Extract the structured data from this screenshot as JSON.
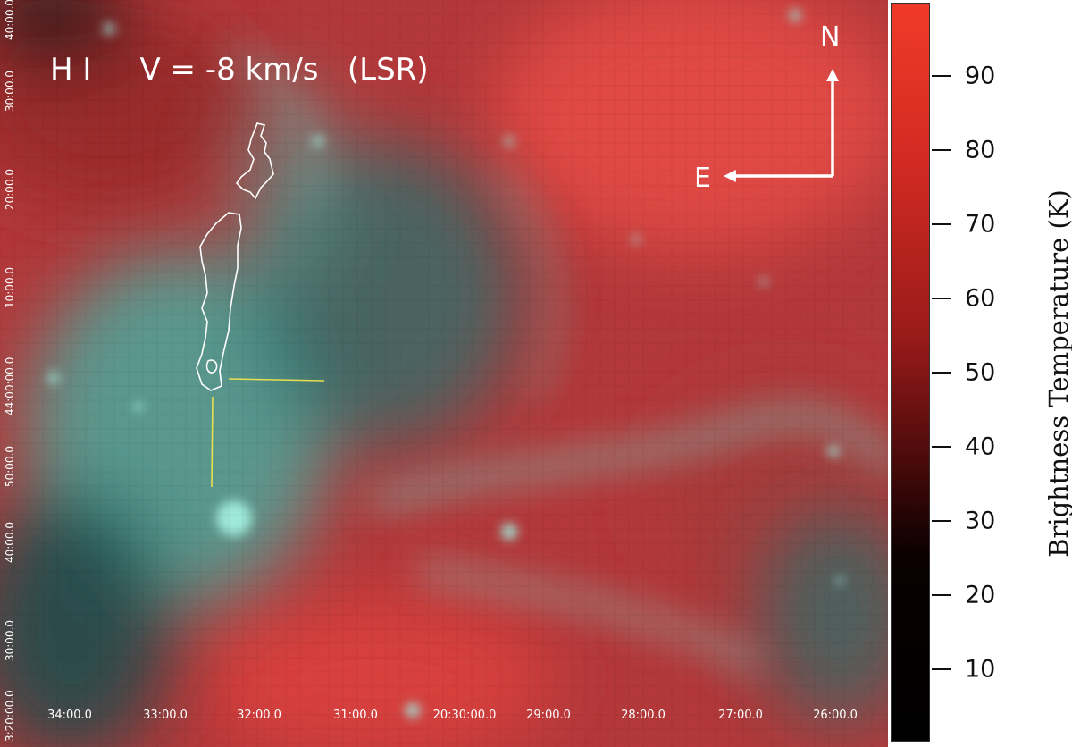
{
  "map": {
    "title": "H I     V = -8 km/s   (LSR)",
    "ra_ticks": [
      "34:00.0",
      "33:00.0",
      "32:00.0",
      "31:00.0",
      "20:30:00.0",
      "29:00.0",
      "28:00.0",
      "27:00.0",
      "26:00.0"
    ],
    "dec_ticks": [
      "40:00.0",
      "30:00.0",
      "20:00.0",
      "10:00.0",
      "44:00:00.0",
      "50:00.0",
      "40:00.0",
      "30:00.0",
      "3:20:00.0"
    ],
    "compass": {
      "north": "N",
      "east": "E"
    },
    "colors": {
      "hi_emission": "#c8322c",
      "ir_emission": "#5fc8b8",
      "contour": "#ffffff",
      "marker": "#e8e050",
      "overlay_text": "#ffffff"
    }
  },
  "colorbar": {
    "title": "Brightness Temperature (K)",
    "ticks": [
      "90",
      "80",
      "70",
      "60",
      "50",
      "40",
      "30",
      "20",
      "10"
    ],
    "range": [
      1,
      100
    ],
    "colormap": "black-to-red"
  }
}
